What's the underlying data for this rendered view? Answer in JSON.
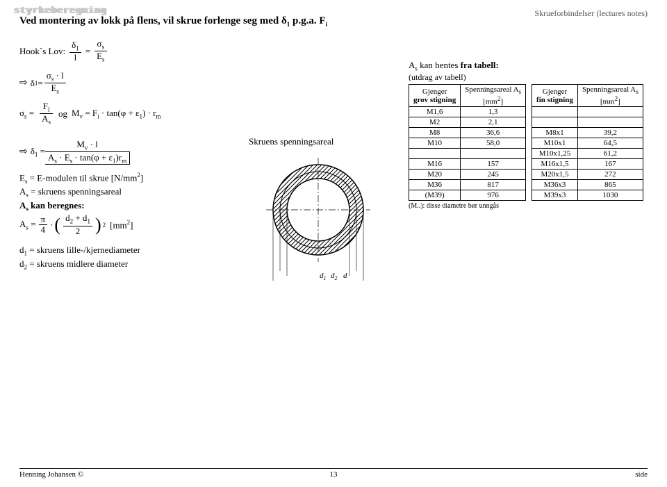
{
  "watermark": "styrkeberegning",
  "header_right": "Skrueforbindelser (lectures notes)",
  "heading": "Ved montering av lokk på flens, vil skrue forlenge seg med δ1 p.g.a. Fi",
  "hook_label": "Hook`s Lov:",
  "hook_eq": {
    "lhs_num": "δ",
    "lhs_num_sub": "1",
    "lhs_den": "l",
    "rhs_num": "σ",
    "rhs_num_sub": "s",
    "rhs_den": "E",
    "rhs_den_sub": "s"
  },
  "delta1_eq": {
    "lhs": "δ",
    "lhs_sub": "1",
    "num": "σs · l",
    "den": "E",
    "den_sub": "s"
  },
  "sigma_eq": {
    "lhs": "σ",
    "lhs_sub": "s",
    "num": "F",
    "num_sub": "i",
    "den": "A",
    "den_sub": "s",
    "and": "og",
    "mv": "M",
    "mv_sub": "v",
    "rhs": "= Fi · tan(φ + ε1) · rm"
  },
  "boxed": {
    "lhs": "δ1 =",
    "num": "Mv · l",
    "den": "As · Es · tan(φ + ε1)rm"
  },
  "defs": {
    "Es": "Es = E-modulen til skrue [N/mm2]",
    "As": "As = skruens spenningsareal",
    "As_can": "As kan beregnes:",
    "As_formula_pre": "As =",
    "As_formula_coeff": "π",
    "As_formula_coeff_den": "4",
    "As_formula_inner_num": "d2 + d1",
    "As_formula_inner_den": "2",
    "As_formula_unit": "[mm2]",
    "d1": "d1 = skruens lille-/kjernediameter",
    "d2": "d2 = skruens midlere diameter"
  },
  "middle_label": "Skruens spenningsareal",
  "diagram": {
    "outer_r": 65,
    "mid_r": 55,
    "inner_r": 45,
    "hatch_color": "#000000",
    "stroke": "#000000",
    "labels": {
      "d1": "d1",
      "d2": "d2",
      "d": "d"
    }
  },
  "right": {
    "heading_pre": "As kan hentes ",
    "heading_bold": "fra tabell:",
    "subcaption": "(utdrag av tabell)",
    "table1": {
      "head": [
        "Gjenger\ngrov stigning",
        "Spenningsareal As\n[mm2]"
      ],
      "rows": [
        [
          "M1,6",
          "1,3"
        ],
        [
          "M2",
          "2,1"
        ],
        [
          "M8",
          "36,6"
        ],
        [
          "M10",
          "58,0"
        ],
        [
          "",
          ""
        ],
        [
          "M16",
          "157"
        ],
        [
          "M20",
          "245"
        ],
        [
          "M36",
          "817"
        ],
        [
          "(M39)",
          "976"
        ]
      ]
    },
    "table2": {
      "head": [
        "Gjenger\nfin stigning",
        "Spenningsareal As\n[mm2]"
      ],
      "rows": [
        [
          "",
          ""
        ],
        [
          "",
          ""
        ],
        [
          "M8x1",
          "39,2"
        ],
        [
          "M10x1",
          "64,5"
        ],
        [
          "M10x1,25",
          "61,2"
        ],
        [
          "M16x1,5",
          "167"
        ],
        [
          "M20x1,5",
          "272"
        ],
        [
          "M36x3",
          "865"
        ],
        [
          "M39x3",
          "1030"
        ]
      ]
    },
    "footnote": "(M..): disse diametre bør unngås"
  },
  "footer": {
    "left": "Henning Johansen ©",
    "page": "13",
    "right": "side"
  }
}
